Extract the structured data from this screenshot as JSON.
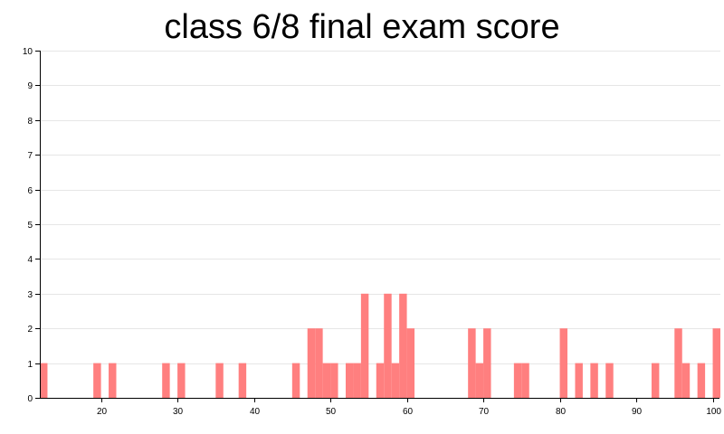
{
  "chart_data": {
    "type": "bar",
    "title": "class 6/8 final exam score",
    "xlabel": "",
    "ylabel": "",
    "xlim": [
      12,
      100
    ],
    "ylim": [
      0,
      10
    ],
    "x_ticks": [
      20,
      30,
      40,
      50,
      60,
      70,
      80,
      90,
      100
    ],
    "y_ticks": [
      0,
      1,
      2,
      3,
      4,
      5,
      6,
      7,
      8,
      9,
      10
    ],
    "grid": true,
    "bar_color": "#ff7f7f",
    "bin_width": 1,
    "bins": [
      {
        "x": 12,
        "count": 1
      },
      {
        "x": 19,
        "count": 1
      },
      {
        "x": 21,
        "count": 1
      },
      {
        "x": 28,
        "count": 1
      },
      {
        "x": 30,
        "count": 1
      },
      {
        "x": 35,
        "count": 1
      },
      {
        "x": 38,
        "count": 1
      },
      {
        "x": 45,
        "count": 1
      },
      {
        "x": 47,
        "count": 2
      },
      {
        "x": 48,
        "count": 2
      },
      {
        "x": 49,
        "count": 1
      },
      {
        "x": 50,
        "count": 1
      },
      {
        "x": 52,
        "count": 1
      },
      {
        "x": 53,
        "count": 1
      },
      {
        "x": 54,
        "count": 3
      },
      {
        "x": 56,
        "count": 1
      },
      {
        "x": 57,
        "count": 3
      },
      {
        "x": 58,
        "count": 1
      },
      {
        "x": 59,
        "count": 3
      },
      {
        "x": 60,
        "count": 2
      },
      {
        "x": 68,
        "count": 2
      },
      {
        "x": 69,
        "count": 1
      },
      {
        "x": 70,
        "count": 2
      },
      {
        "x": 74,
        "count": 1
      },
      {
        "x": 75,
        "count": 1
      },
      {
        "x": 80,
        "count": 2
      },
      {
        "x": 82,
        "count": 1
      },
      {
        "x": 84,
        "count": 1
      },
      {
        "x": 86,
        "count": 1
      },
      {
        "x": 92,
        "count": 1
      },
      {
        "x": 95,
        "count": 2
      },
      {
        "x": 96,
        "count": 1
      },
      {
        "x": 98,
        "count": 1
      },
      {
        "x": 100,
        "count": 2
      }
    ]
  }
}
